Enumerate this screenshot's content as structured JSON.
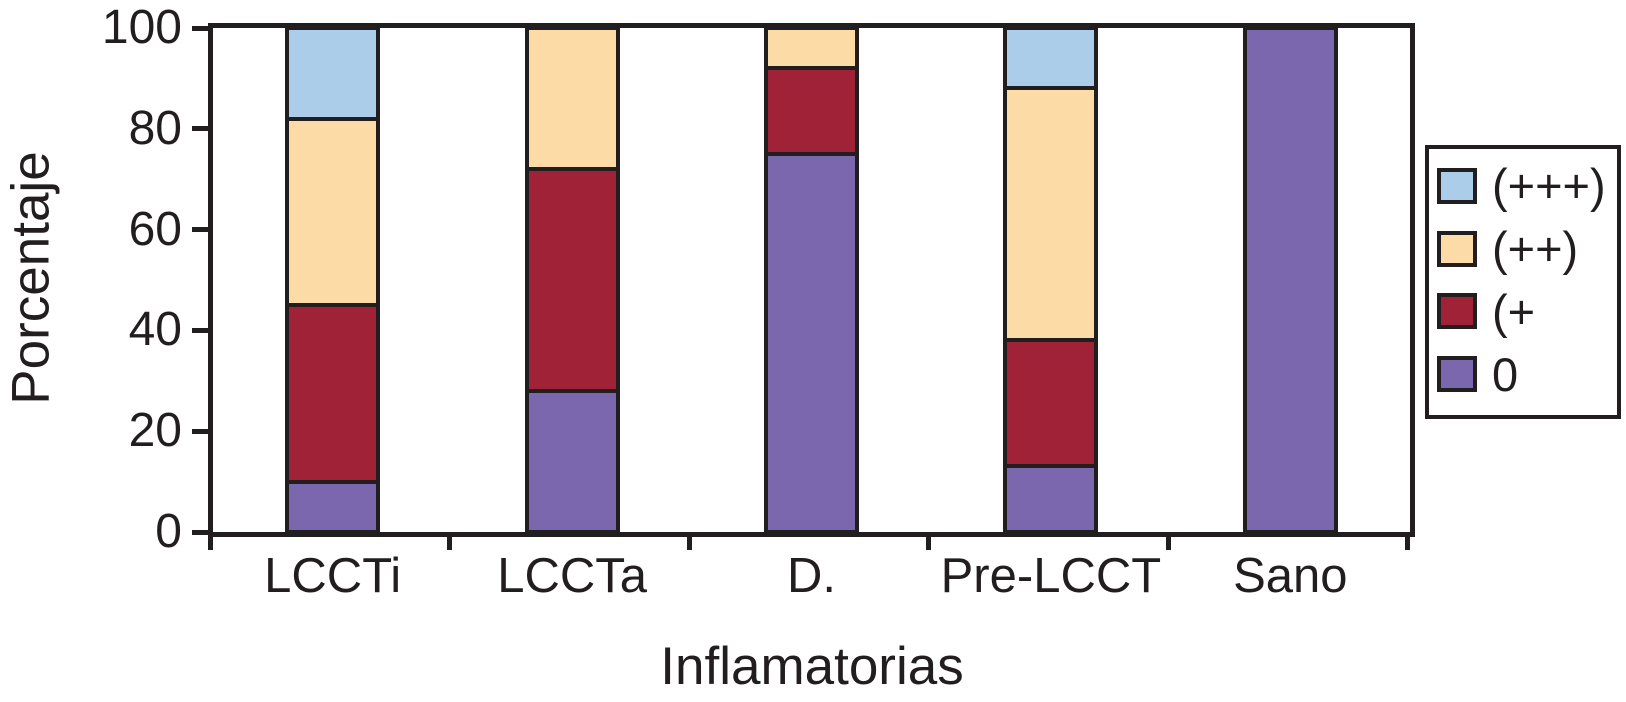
{
  "chart_data": {
    "type": "bar",
    "stacked": true,
    "title": "",
    "xlabel": "Inflamatorias",
    "ylabel": "Porcentaje",
    "categories": [
      "LCCTi",
      "LCCTa",
      "D.",
      "Pre-LCCT",
      "Sano"
    ],
    "yticks": [
      0,
      20,
      40,
      60,
      80,
      100
    ],
    "ylim": [
      0,
      100
    ],
    "grid": false,
    "legend_position": "right",
    "series": [
      {
        "name": "(+++)",
        "color": "#ACCDEA",
        "values": [
          18,
          0,
          0,
          12,
          0
        ]
      },
      {
        "name": "(++)",
        "color": "#FDDBA6",
        "values": [
          37,
          28,
          8,
          50,
          0
        ]
      },
      {
        "name": "(+",
        "color": "#9F2236",
        "values": [
          35,
          44,
          17,
          25,
          0
        ]
      },
      {
        "name": "0",
        "color": "#7A67AE",
        "values": [
          10,
          28,
          75,
          13,
          100
        ]
      }
    ],
    "line_color": "#221E1F"
  }
}
